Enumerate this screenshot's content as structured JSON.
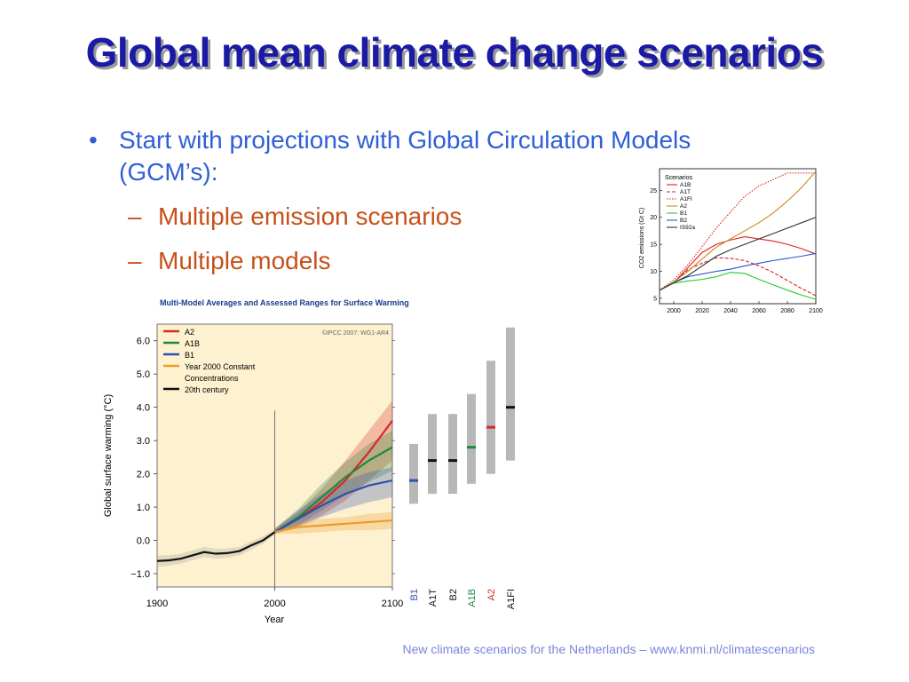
{
  "slide": {
    "title": "Global mean climate change scenarios",
    "bullet": "Start with projections with Global Circulation Models (GCM’s):",
    "bullet_line1": "Start with projections with Global Circulation Models",
    "bullet_line2": "(GCM’s):",
    "sub_bullets": [
      "Multiple emission scenarios",
      "Multiple models"
    ],
    "footer": "New climate scenarios for the Netherlands – www.knmi.nl/climatescenarios",
    "bullet_glyph": "•",
    "dash_glyph": "–"
  },
  "chart_data": [
    {
      "type": "line",
      "title": "",
      "xlabel": "",
      "ylabel": "CO2 emissions (Gt C)",
      "xlim": [
        1990,
        2100
      ],
      "ylim": [
        4,
        29
      ],
      "x_ticks": [
        "2000",
        "2020",
        "2040",
        "2060",
        "2080",
        "2100"
      ],
      "y_ticks": [
        "5",
        "10",
        "15",
        "20",
        "25"
      ],
      "legend_title": "Scenarios",
      "legend_position": "top-left",
      "series": [
        {
          "name": "A1B",
          "color": "#e02020",
          "dash": "solid",
          "x": [
            1990,
            2000,
            2010,
            2020,
            2030,
            2040,
            2050,
            2060,
            2070,
            2080,
            2090,
            2100
          ],
          "y": [
            6.5,
            7.9,
            10.7,
            13.5,
            15,
            15.8,
            16.4,
            16,
            15.6,
            15,
            14.2,
            13.2
          ]
        },
        {
          "name": "A1T",
          "color": "#e02020",
          "dash": "dashed",
          "x": [
            1990,
            2000,
            2010,
            2020,
            2030,
            2040,
            2050,
            2060,
            2070,
            2080,
            2090,
            2100
          ],
          "y": [
            6.5,
            7.9,
            10.3,
            11.5,
            12.5,
            12.4,
            12,
            11,
            9.8,
            8.3,
            6.8,
            5.5
          ]
        },
        {
          "name": "A1FI",
          "color": "#e02020",
          "dash": "dotted",
          "x": [
            1990,
            2000,
            2010,
            2020,
            2030,
            2040,
            2050,
            2060,
            2070,
            2080,
            2090,
            2100
          ],
          "y": [
            6.5,
            8.4,
            11.2,
            14.6,
            18,
            21,
            23.9,
            25.8,
            27,
            28.2,
            28.2,
            28.2
          ]
        },
        {
          "name": "A2",
          "color": "#c98a1a",
          "dash": "solid",
          "x": [
            1990,
            2000,
            2010,
            2020,
            2030,
            2040,
            2050,
            2060,
            2070,
            2080,
            2090,
            2100
          ],
          "y": [
            6.5,
            8,
            10,
            12.3,
            14.5,
            16,
            17.5,
            19,
            20.8,
            23,
            25.5,
            28.5
          ]
        },
        {
          "name": "B1",
          "color": "#22cc22",
          "dash": "solid",
          "x": [
            1990,
            2000,
            2010,
            2020,
            2030,
            2040,
            2050,
            2060,
            2070,
            2080,
            2090,
            2100
          ],
          "y": [
            6.5,
            7.8,
            8.2,
            8.5,
            9,
            9.8,
            9.6,
            8.5,
            7.5,
            6.5,
            5.6,
            4.8
          ]
        },
        {
          "name": "B2",
          "color": "#2255cc",
          "dash": "solid",
          "x": [
            1990,
            2000,
            2010,
            2020,
            2030,
            2040,
            2050,
            2060,
            2070,
            2080,
            2090,
            2100
          ],
          "y": [
            6.5,
            7.9,
            9,
            9.5,
            10,
            10.4,
            11,
            11.5,
            12,
            12.4,
            12.8,
            13.3
          ]
        },
        {
          "name": "IS92a",
          "color": "#333333",
          "dash": "solid",
          "x": [
            1990,
            2000,
            2010,
            2020,
            2030,
            2040,
            2050,
            2060,
            2070,
            2080,
            2090,
            2100
          ],
          "y": [
            6.5,
            7.9,
            9.2,
            11,
            12.8,
            14,
            15,
            16,
            17,
            18,
            19,
            20
          ]
        }
      ]
    },
    {
      "type": "line",
      "title": "Multi-Model Averages and Assessed Ranges for Surface Warming",
      "credit": "©IPCC 2007: WG1-AR4",
      "xlabel": "Year",
      "ylabel": "Global surface warming (°C)",
      "xlim": [
        1900,
        2100
      ],
      "ylim": [
        -1.4,
        6.5
      ],
      "x_ticks": [
        "1900",
        "2000",
        "2100"
      ],
      "y_ticks": [
        "−1.0",
        "0.0",
        "1.0",
        "2.0",
        "3.0",
        "4.0",
        "5.0",
        "6.0"
      ],
      "legend_position": "top-left",
      "legend": [
        "A2",
        "A1B",
        "B1",
        "Year 2000 Constant Concentrations",
        "20th century"
      ],
      "legend_line1": [
        "A2",
        "A1B",
        "B1",
        "Year 2000 Constant",
        "20th century"
      ],
      "legend_line2_const": "Concentrations",
      "series": [
        {
          "name": "A2",
          "color": "#d42a2a",
          "x": [
            2000,
            2020,
            2040,
            2060,
            2080,
            2100
          ],
          "y": [
            0.25,
            0.65,
            1.15,
            1.8,
            2.65,
            3.6
          ],
          "band_low": [
            0.2,
            0.45,
            0.75,
            1.2,
            1.8,
            2.4
          ],
          "band_high": [
            0.35,
            0.85,
            1.55,
            2.4,
            3.3,
            4.2
          ]
        },
        {
          "name": "A1B",
          "color": "#1e8a3c",
          "x": [
            2000,
            2020,
            2040,
            2060,
            2080,
            2100
          ],
          "y": [
            0.25,
            0.7,
            1.3,
            1.9,
            2.4,
            2.8
          ],
          "band_low": [
            0.2,
            0.45,
            0.9,
            1.35,
            1.75,
            2.1
          ],
          "band_high": [
            0.35,
            0.95,
            1.7,
            2.35,
            2.9,
            3.3
          ]
        },
        {
          "name": "B1",
          "color": "#3050b0",
          "x": [
            2000,
            2020,
            2040,
            2060,
            2080,
            2100
          ],
          "y": [
            0.25,
            0.65,
            1.05,
            1.4,
            1.65,
            1.8
          ],
          "band_low": [
            0.2,
            0.4,
            0.7,
            0.95,
            1.15,
            1.3
          ],
          "band_high": [
            0.35,
            0.9,
            1.4,
            1.8,
            2.05,
            2.2
          ]
        },
        {
          "name": "Year 2000 Constant Concentrations",
          "color": "#ee9a2a",
          "x": [
            2000,
            2020,
            2040,
            2060,
            2080,
            2100
          ],
          "y": [
            0.25,
            0.4,
            0.45,
            0.5,
            0.55,
            0.6
          ],
          "band_low": [
            0.2,
            0.2,
            0.25,
            0.3,
            0.3,
            0.35
          ],
          "band_high": [
            0.35,
            0.55,
            0.65,
            0.7,
            0.8,
            0.85
          ]
        },
        {
          "name": "20th century",
          "color": "#111111",
          "x": [
            1900,
            1910,
            1920,
            1930,
            1940,
            1950,
            1960,
            1970,
            1980,
            1990,
            2000
          ],
          "y": [
            -0.62,
            -0.6,
            -0.55,
            -0.45,
            -0.35,
            -0.4,
            -0.38,
            -0.32,
            -0.15,
            0.0,
            0.25
          ],
          "band_low": [
            -0.8,
            -0.75,
            -0.7,
            -0.6,
            -0.5,
            -0.55,
            -0.52,
            -0.45,
            -0.28,
            -0.1,
            0.18
          ],
          "band_high": [
            -0.45,
            -0.45,
            -0.4,
            -0.3,
            -0.2,
            -0.25,
            -0.24,
            -0.2,
            -0.03,
            0.12,
            0.33
          ]
        }
      ],
      "ranges": [
        {
          "label": "B1",
          "color": "#3050b0",
          "low": 1.1,
          "high": 2.9,
          "best": 1.8
        },
        {
          "label": "A1T",
          "color": "#111111",
          "low": 1.4,
          "high": 3.8,
          "best": 2.4
        },
        {
          "label": "B2",
          "color": "#111111",
          "low": 1.4,
          "high": 3.8,
          "best": 2.4
        },
        {
          "label": "A1B",
          "color": "#1e8a3c",
          "low": 1.7,
          "high": 4.4,
          "best": 2.8
        },
        {
          "label": "A2",
          "color": "#d42a2a",
          "low": 2.0,
          "high": 5.4,
          "best": 3.4
        },
        {
          "label": "A1FI",
          "color": "#111111",
          "low": 2.4,
          "high": 6.4,
          "best": 4.0
        }
      ]
    }
  ]
}
